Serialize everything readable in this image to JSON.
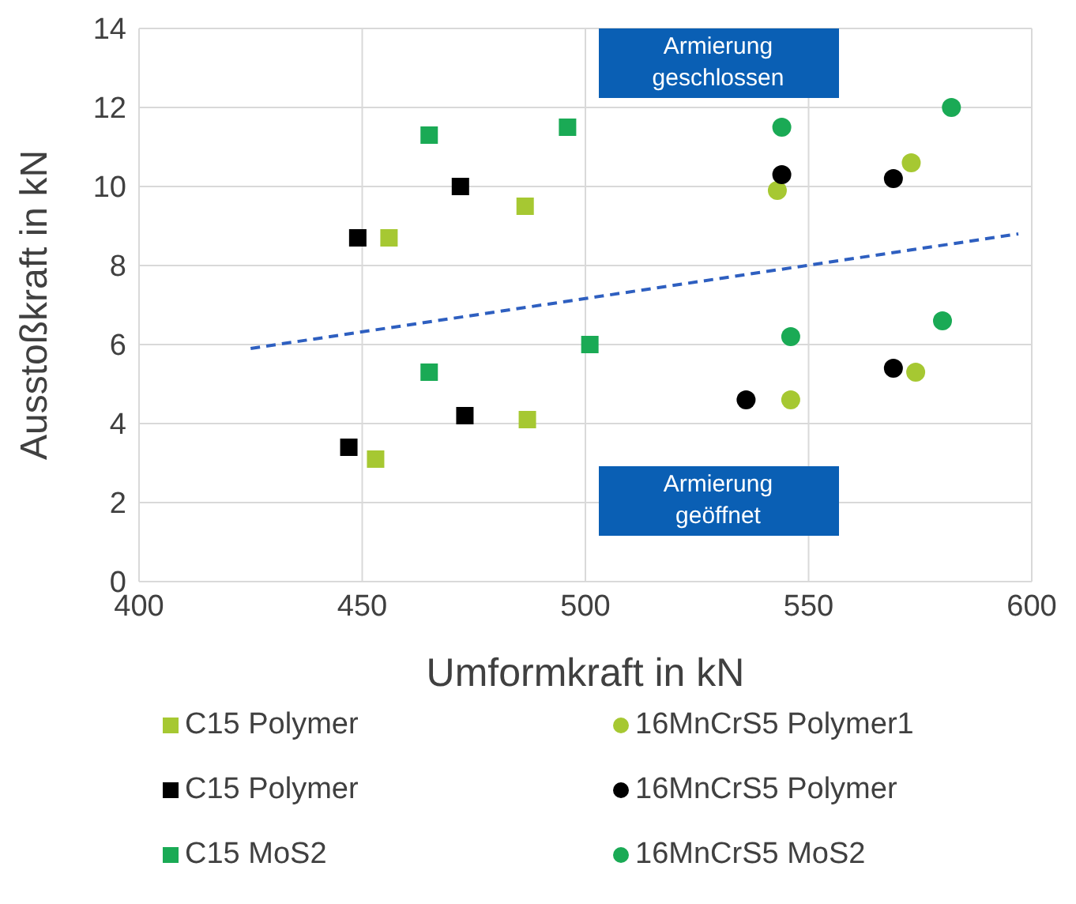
{
  "chart_data": {
    "type": "scatter",
    "xlabel": "Umformkraft in kN",
    "ylabel": "Ausstoßkraft in kN",
    "xlim": [
      400,
      600
    ],
    "xticks": [
      400,
      450,
      500,
      550,
      600
    ],
    "ylim": [
      0,
      14
    ],
    "yticks": [
      0,
      2,
      4,
      6,
      8,
      10,
      12,
      14
    ],
    "grid": true,
    "legend": "bottom",
    "annotations": [
      "Armierung geschlossen",
      "Armierung geöffnet"
    ],
    "series": [
      {
        "name": "C15 Polymer",
        "color": "#a6c832",
        "marker": "square",
        "x": [
          456,
          486.5,
          453,
          487
        ],
        "values": [
          8.7,
          9.5,
          3.1,
          4.1
        ]
      },
      {
        "name": "C15 Polymer",
        "color": "#000000",
        "marker": "square",
        "x": [
          449,
          472,
          447,
          473
        ],
        "values": [
          8.7,
          10,
          3.4,
          4.2
        ]
      },
      {
        "name": "C15 MoS2",
        "color": "#1aaa55",
        "marker": "square",
        "x": [
          465,
          465,
          496,
          501
        ],
        "values": [
          11.3,
          5.3,
          11.5,
          6
        ]
      },
      {
        "name": "16MnCrS5 Polymer1",
        "color": "#a6c832",
        "marker": "circle",
        "x": [
          543,
          573,
          546,
          574
        ],
        "values": [
          9.9,
          10.6,
          4.6,
          5.3
        ]
      },
      {
        "name": "16MnCrS5 Polymer",
        "color": "#000000",
        "marker": "circle",
        "x": [
          544,
          569,
          536,
          569
        ],
        "values": [
          10.3,
          10.2,
          4.6,
          5.4
        ]
      },
      {
        "name": "16MnCrS5 MoS2",
        "color": "#1aaa55",
        "marker": "circle",
        "x": [
          544,
          582,
          546,
          580
        ],
        "values": [
          11.5,
          12,
          6.2,
          6.6
        ]
      },
      {
        "type": "line",
        "color": "#2e5fc0",
        "line_style": "dashed",
        "marker": "none",
        "x": [
          425,
          597
        ],
        "values": [
          5.9,
          8.8
        ]
      }
    ]
  }
}
